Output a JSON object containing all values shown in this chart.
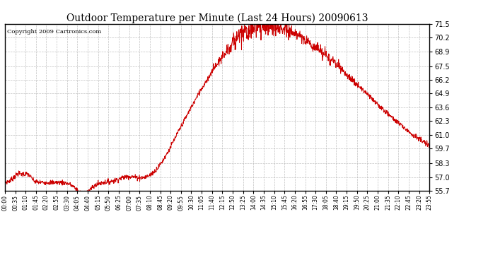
{
  "title": "Outdoor Temperature per Minute (Last 24 Hours) 20090613",
  "copyright_text": "Copyright 2009 Cartronics.com",
  "line_color": "#cc0000",
  "background_color": "#ffffff",
  "grid_color": "#b0b0b0",
  "yticks": [
    55.7,
    57.0,
    58.3,
    59.7,
    61.0,
    62.3,
    63.6,
    64.9,
    66.2,
    67.5,
    68.9,
    70.2,
    71.5
  ],
  "ymin": 55.7,
  "ymax": 71.5,
  "xtick_labels": [
    "00:00",
    "00:35",
    "01:10",
    "01:45",
    "02:20",
    "02:55",
    "03:30",
    "04:05",
    "04:40",
    "05:15",
    "05:50",
    "06:25",
    "07:00",
    "07:35",
    "08:10",
    "08:45",
    "09:20",
    "09:55",
    "10:30",
    "11:05",
    "11:40",
    "12:15",
    "12:50",
    "13:25",
    "14:00",
    "14:35",
    "15:10",
    "15:45",
    "16:20",
    "16:55",
    "17:30",
    "18:05",
    "18:40",
    "19:15",
    "19:50",
    "20:25",
    "21:00",
    "21:35",
    "22:10",
    "22:45",
    "23:20",
    "23:55"
  ],
  "num_points": 1440
}
